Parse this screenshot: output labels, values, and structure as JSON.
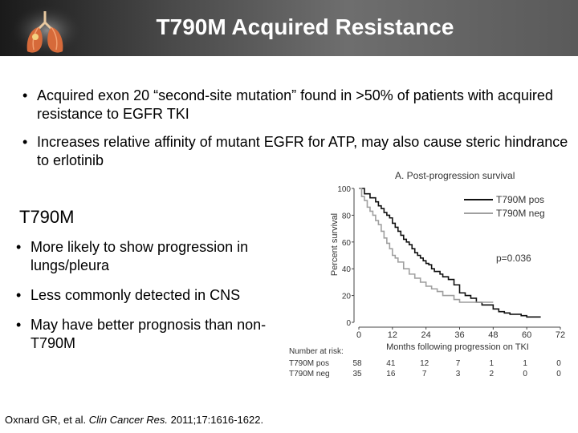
{
  "slide": {
    "title": "T790M Acquired Resistance",
    "bullets_top": [
      "Acquired exon 20 “second-site mutation” found in >50% of patients with acquired resistance to EGFR TKI",
      "Increases relative affinity of mutant EGFR for ATP, may also cause steric hindrance to erlotinib"
    ],
    "subheading": "T790M",
    "bullets_left": [
      "More likely to show progression in lungs/pleura",
      "Less commonly detected in CNS",
      "May have better prognosis than non-T790M"
    ],
    "citation_authors": "Oxnard GR, et al. ",
    "citation_journal": "Clin Cancer Res.",
    "citation_rest": " 2011;17:1616-1622."
  },
  "chart_data": {
    "type": "line",
    "title": "A. Post-progression survival",
    "xlabel": "Months following progression on TKI",
    "ylabel": "Percent survival",
    "xlim": [
      0,
      72
    ],
    "ylim": [
      0,
      100
    ],
    "x_ticks": [
      "0",
      "12",
      "24",
      "36",
      "48",
      "60",
      "72"
    ],
    "y_ticks": [
      "0",
      "20",
      "40",
      "60",
      "80",
      "100"
    ],
    "annotation": "p=0.036",
    "legend_position": "top-right",
    "series": [
      {
        "name": "T790M pos",
        "color": "#111111",
        "x": [
          0,
          2,
          4,
          6,
          7,
          8,
          9,
          10,
          11,
          12,
          13,
          14,
          15,
          16,
          17,
          18,
          19,
          20,
          21,
          22,
          23,
          24,
          25,
          26,
          27,
          29,
          30,
          32,
          34,
          36,
          38,
          40,
          42,
          44,
          48,
          50,
          52,
          54,
          58,
          60,
          65
        ],
        "y": [
          100,
          96,
          93,
          90,
          87,
          85,
          82,
          80,
          78,
          74,
          71,
          68,
          65,
          62,
          60,
          58,
          55,
          52,
          50,
          48,
          46,
          44,
          43,
          40,
          38,
          36,
          34,
          32,
          28,
          22,
          20,
          18,
          15,
          13,
          10,
          8,
          7,
          6,
          5,
          4,
          4
        ]
      },
      {
        "name": "T790M neg",
        "color": "#a0a0a0",
        "x": [
          0,
          1,
          2,
          3,
          4,
          5,
          6,
          7,
          8,
          9,
          10,
          11,
          12,
          13,
          14,
          16,
          18,
          20,
          22,
          24,
          26,
          28,
          30,
          34,
          36,
          40,
          48
        ],
        "y": [
          100,
          94,
          91,
          86,
          83,
          80,
          76,
          73,
          68,
          63,
          59,
          55,
          50,
          48,
          45,
          40,
          36,
          33,
          30,
          27,
          25,
          23,
          20,
          17,
          15,
          15,
          15
        ]
      }
    ],
    "risk_table": {
      "header": "Number at risk:",
      "rows": [
        {
          "label": "T790M pos",
          "values": [
            "58",
            "41",
            "12",
            "7",
            "1",
            "1",
            "0"
          ]
        },
        {
          "label": "T790M neg",
          "values": [
            "35",
            "16",
            "7",
            "3",
            "2",
            "0",
            "0"
          ]
        }
      ]
    }
  }
}
